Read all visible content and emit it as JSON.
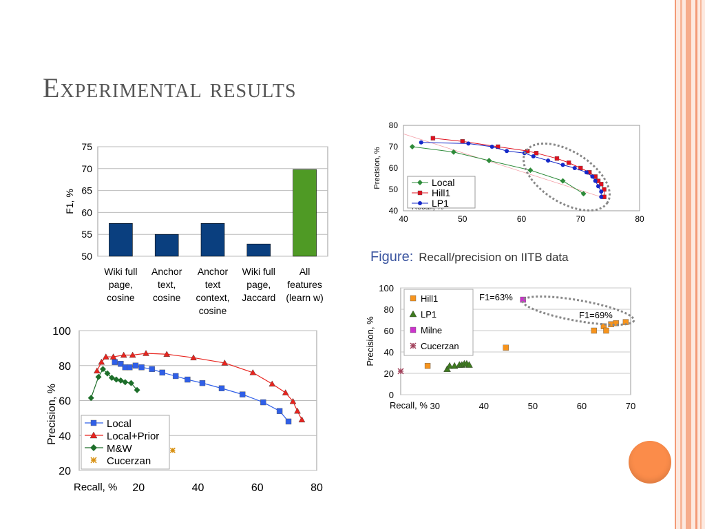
{
  "slide": {
    "title": "Experimental results",
    "caption_prefix": "Figure:",
    "caption_text": "Recall/precision on IITB data",
    "accent_colors": {
      "stripe_light": "#fde3d5",
      "stripe_mid": "#f7b79a",
      "stripe_dark": "#f39a76",
      "orb": "#fb8c4a"
    }
  },
  "chart_data": [
    {
      "id": "f1-bars",
      "type": "bar",
      "ylabel": "F1, %",
      "ylim": [
        50,
        75
      ],
      "yticks": [
        50,
        55,
        60,
        65,
        70,
        75
      ],
      "categories": [
        [
          "Wiki full",
          "page,",
          "cosine"
        ],
        [
          "Anchor",
          "text,",
          "cosine"
        ],
        [
          "Anchor",
          "text",
          "context,",
          "cosine"
        ],
        [
          "Wiki full",
          "page,",
          "Jaccard"
        ],
        [
          "All",
          "features",
          "(learn w)"
        ]
      ],
      "values": [
        57.5,
        55,
        57.5,
        52.8,
        69.8
      ],
      "colors": [
        "#0a3f7f",
        "#0a3f7f",
        "#0a3f7f",
        "#0a3f7f",
        "#4f9a25"
      ],
      "grid": true
    },
    {
      "id": "iitb-top",
      "type": "line",
      "xlabel": "Recall, %",
      "ylabel": "Precision, %",
      "xlim": [
        40,
        80
      ],
      "ylim": [
        40,
        80
      ],
      "xticks": [
        40,
        50,
        60,
        70,
        80
      ],
      "yticks": [
        40,
        50,
        60,
        70,
        80
      ],
      "grid": false,
      "legend_position": "bottom-left",
      "series": [
        {
          "name": "Local",
          "color": "#2e8b3a",
          "marker": "diamond",
          "x": [
            41.5,
            48.5,
            54.5,
            61.5,
            67,
            70.5
          ],
          "y": [
            70,
            67.5,
            63.5,
            59,
            54,
            48
          ]
        },
        {
          "name": "Hill1",
          "color": "#e0101e",
          "marker": "square",
          "x": [
            45,
            50,
            56,
            61,
            62.5,
            66,
            68,
            70,
            71.5,
            72.5,
            73,
            73.5,
            74,
            74
          ],
          "y": [
            74,
            72.5,
            70,
            68,
            67,
            64.5,
            62.5,
            60,
            58,
            56,
            54,
            52.5,
            50,
            46.5
          ]
        },
        {
          "name": "LP1",
          "color": "#1428c8",
          "marker": "circle",
          "x": [
            43,
            51,
            55,
            57.5,
            60.5,
            62,
            64.5,
            67,
            69,
            71,
            72,
            72.5,
            73,
            73.5,
            73.5
          ],
          "y": [
            72,
            71.5,
            70,
            68,
            67,
            65.5,
            63.5,
            61.5,
            60,
            58,
            56,
            54,
            51.5,
            49,
            46.5
          ]
        }
      ],
      "annotation": "dotted ellipse around high-recall points"
    },
    {
      "id": "iitb-bottom",
      "type": "scatter",
      "xlabel": "Recall, %",
      "ylabel": "Precision, %",
      "xlim": [
        23,
        70
      ],
      "ylim": [
        0,
        100
      ],
      "xticks": [
        30,
        40,
        50,
        60,
        70
      ],
      "yticks": [
        0,
        20,
        40,
        60,
        80,
        100
      ],
      "grid": true,
      "legend_position": "top-left",
      "annotations": [
        "F1=63%",
        "F1=69%"
      ],
      "series": [
        {
          "name": "Hill1",
          "color": "#f7941d",
          "marker": "square",
          "x": [
            28.5,
            44.5,
            62.5,
            64.5,
            65,
            66,
            67,
            69
          ],
          "y": [
            27,
            44,
            60,
            64,
            60,
            66,
            67,
            68
          ]
        },
        {
          "name": "LP1",
          "color": "#3e7a1f",
          "marker": "triangle",
          "x": [
            32.5,
            33,
            34,
            35,
            35.5,
            36,
            36.5,
            37
          ],
          "y": [
            24,
            27,
            27,
            28,
            28,
            29,
            29,
            28
          ]
        },
        {
          "name": "Milne",
          "color": "#cc33cc",
          "marker": "square",
          "x": [
            48
          ],
          "y": [
            89
          ]
        },
        {
          "name": "Cucerzan",
          "color": "#a0405a",
          "marker": "asterisk",
          "x": [
            23
          ],
          "y": [
            22
          ]
        }
      ]
    },
    {
      "id": "precision-recall-left",
      "type": "line",
      "xlabel": "Recall, %",
      "ylabel": "Precision, %",
      "xlim": [
        0,
        80
      ],
      "ylim": [
        20,
        100
      ],
      "xticks": [
        20,
        40,
        60,
        80
      ],
      "yticks": [
        20,
        40,
        60,
        80,
        100
      ],
      "grid": true,
      "legend_position": "bottom-left",
      "series": [
        {
          "name": "Local",
          "color": "#2f5fe8",
          "marker": "square",
          "x": [
            12,
            14,
            15.5,
            17,
            19,
            21,
            24.5,
            28,
            32.5,
            36.5,
            41.5,
            48,
            55,
            62,
            67.5,
            70.5
          ],
          "y": [
            82,
            81,
            79,
            79,
            80,
            79,
            78,
            76,
            74,
            72,
            70,
            67,
            63.5,
            59,
            54,
            48
          ]
        },
        {
          "name": "Local+Prior",
          "color": "#e8241e",
          "marker": "triangle",
          "x": [
            6,
            7.5,
            9,
            11.5,
            15,
            18,
            22.5,
            29.5,
            38.5,
            49,
            58.5,
            65,
            69.5,
            72,
            73.5,
            75
          ],
          "y": [
            77,
            82,
            85,
            85,
            86,
            86,
            87,
            86.5,
            84.5,
            81.5,
            76,
            69.5,
            64.5,
            59.5,
            54,
            49
          ]
        },
        {
          "name": "M&W",
          "color": "#1d6e2a",
          "marker": "diamond",
          "x": [
            4,
            6.5,
            8,
            9.5,
            11,
            12.5,
            14,
            15.5,
            17.5,
            19.5
          ],
          "y": [
            61.5,
            73.5,
            78,
            75.5,
            73,
            72,
            71.5,
            70.5,
            70,
            66
          ]
        },
        {
          "name": "Cucerzan",
          "color": "#d89010",
          "marker": "asterisk",
          "x": [
            31.5
          ],
          "y": [
            31.5
          ]
        }
      ]
    }
  ]
}
